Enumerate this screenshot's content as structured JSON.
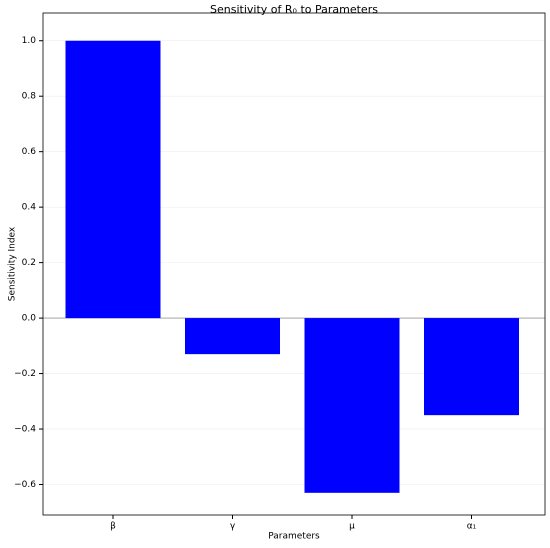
{
  "chart_data": {
    "type": "bar",
    "title": "Sensitivity of R₀ to Parameters",
    "x_label": "Parameters",
    "y_label": "Sensitivity Index",
    "categories": [
      "β",
      "γ",
      "μ",
      "α₁"
    ],
    "values": [
      1.0,
      -0.13,
      -0.63,
      -0.35
    ],
    "color": "#0000ff",
    "ylim": [
      -0.71,
      1.1
    ],
    "yticks": [
      {
        "value": -0.6,
        "label": "−0.6"
      },
      {
        "value": -0.4,
        "label": "−0.4"
      },
      {
        "value": -0.2,
        "label": "−0.2"
      },
      {
        "value": 0,
        "label": "0.0"
      },
      0.2,
      0.4,
      0.6,
      0.8,
      {
        "value": 1,
        "label": "1.0"
      }
    ],
    "grid": true
  }
}
